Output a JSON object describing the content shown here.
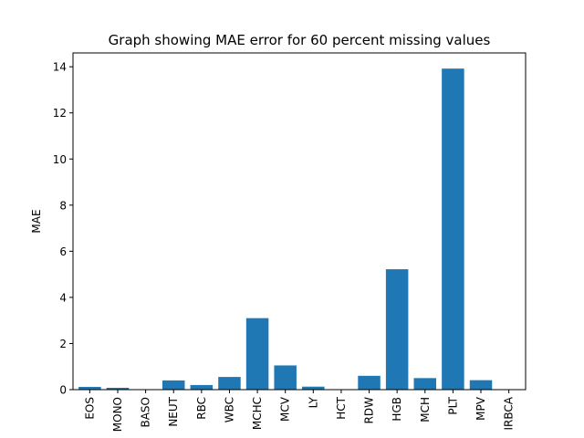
{
  "chart_data": {
    "type": "bar",
    "title": "Graph showing MAE error for 60 percent missing values",
    "xlabel": "",
    "ylabel": "MAE",
    "categories": [
      "EOS",
      "MONO",
      "BASO",
      "NEUT",
      "RBC",
      "WBC",
      "MCHC",
      "MCV",
      "LY",
      "HCT",
      "RDW",
      "HGB",
      "MCH",
      "PLT",
      "MPV",
      "IRBCA"
    ],
    "values": [
      0.12,
      0.08,
      0.0,
      0.4,
      0.2,
      0.55,
      3.1,
      1.05,
      0.13,
      0.0,
      0.6,
      5.22,
      0.5,
      13.92,
      0.41,
      0.0
    ],
    "ylim": [
      0,
      14.6
    ],
    "yticks": [
      0,
      2,
      4,
      6,
      8,
      10,
      12,
      14
    ],
    "bar_color": "#1f77b4",
    "grid": false,
    "legend": "none"
  }
}
